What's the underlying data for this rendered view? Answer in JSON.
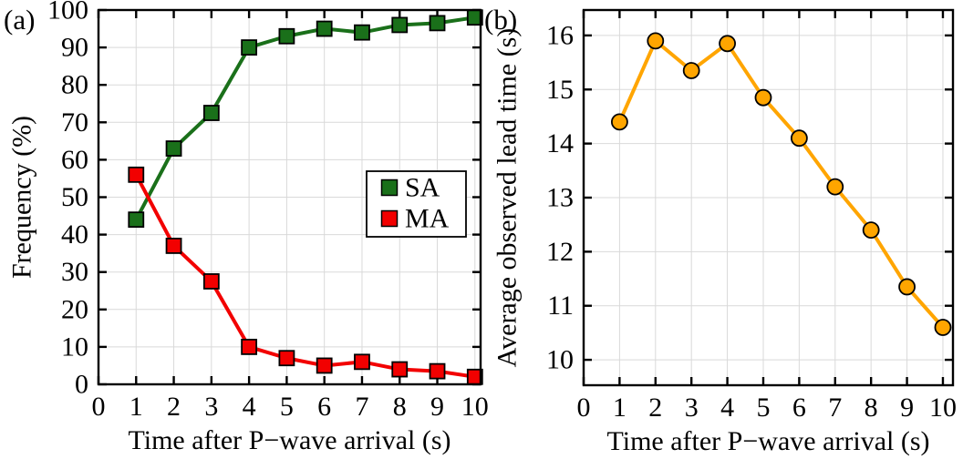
{
  "page": {
    "background": "#ffffff",
    "axis_color": "#000000",
    "grid_color": "#d9d9d9"
  },
  "chart_data": [
    {
      "type": "line",
      "panel_label": "(a)",
      "xlabel": "Time after P−wave arrival (s)",
      "ylabel": "Frequency (%)",
      "x": [
        1,
        2,
        3,
        4,
        5,
        6,
        7,
        8,
        9,
        10
      ],
      "series": [
        {
          "name": "SA",
          "color": "#1a701a",
          "marker": "square",
          "values": [
            44,
            63,
            72.5,
            90,
            93,
            95,
            94,
            96,
            96.5,
            98
          ]
        },
        {
          "name": "MA",
          "color": "#f20000",
          "marker": "square",
          "values": [
            56,
            37,
            27.5,
            10,
            7,
            5,
            6,
            4,
            3.5,
            2
          ]
        }
      ],
      "xlim": [
        0,
        10.15
      ],
      "ylim": [
        0,
        100
      ],
      "xticks": [
        0,
        1,
        2,
        3,
        4,
        5,
        6,
        7,
        8,
        9,
        10
      ],
      "yticks": [
        0,
        10,
        20,
        30,
        40,
        50,
        60,
        70,
        80,
        90,
        100
      ],
      "grid": true,
      "legend": {
        "position": "inside-right",
        "entries": [
          "SA",
          "MA"
        ]
      }
    },
    {
      "type": "line",
      "panel_label": "(b)",
      "xlabel": "Time after P−wave arrival (s)",
      "ylabel": "Average observed lead time (s)",
      "x": [
        1,
        2,
        3,
        4,
        5,
        6,
        7,
        8,
        9,
        10
      ],
      "series": [
        {
          "name": "Average observed lead time",
          "color": "#ffa500",
          "marker": "circle",
          "values": [
            14.4,
            15.9,
            15.35,
            15.85,
            14.85,
            14.1,
            13.2,
            12.4,
            11.35,
            10.6
          ]
        }
      ],
      "xlim": [
        0,
        10.28
      ],
      "ylim": [
        9.53,
        16.47
      ],
      "xticks": [
        0,
        1,
        2,
        3,
        4,
        5,
        6,
        7,
        8,
        9,
        10
      ],
      "yticks": [
        10,
        11,
        12,
        13,
        14,
        15,
        16
      ],
      "grid": true,
      "legend": null
    }
  ]
}
